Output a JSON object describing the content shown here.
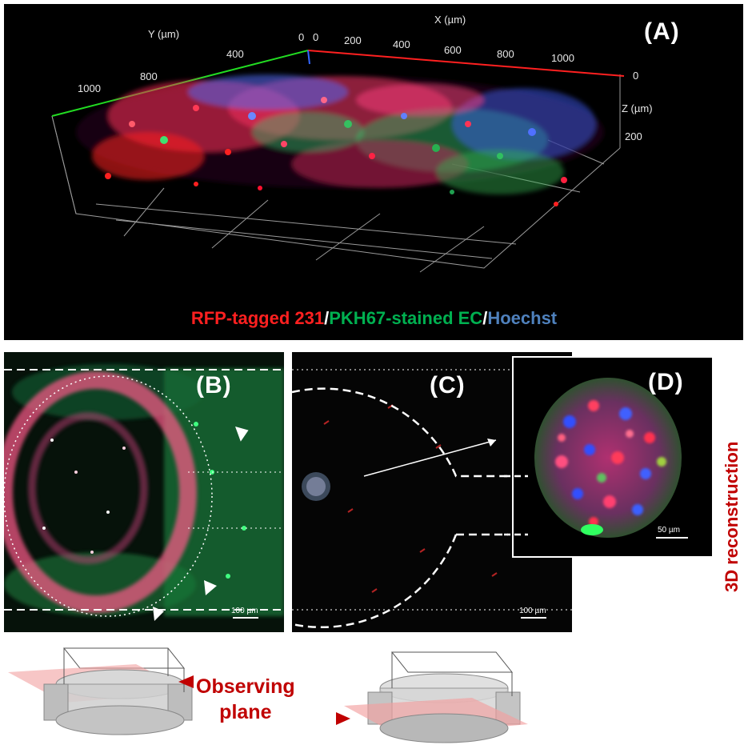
{
  "panelA": {
    "label": "(A)",
    "x_axis_title": "X (µm)",
    "y_axis_title": "Y (µm)",
    "z_axis_title": "Z (µm)",
    "x_ticks": [
      "0",
      "200",
      "400",
      "600",
      "800",
      "1000"
    ],
    "y_ticks": [
      "0",
      "400",
      "800",
      "1000"
    ],
    "z_ticks": [
      "0",
      "200"
    ],
    "legend": {
      "part1": "RFP-tagged 231",
      "sep1": "/",
      "part2": "PKH67-stained EC",
      "sep2": "/",
      "part3": "Hoechst",
      "colors": {
        "part1": "#ff2020",
        "part2": "#00b050",
        "part3": "#4f81bd"
      }
    }
  },
  "panelB": {
    "label": "(B)",
    "scale_bar": "100 µm"
  },
  "panelC": {
    "label": "(C)",
    "scale_bar": "100 µm"
  },
  "panelD": {
    "label": "(D)",
    "scale_bar": "50 µm"
  },
  "side_label": "3D reconstruction",
  "observing_plane": {
    "line1": "Observing",
    "line2": "plane"
  },
  "colors": {
    "accent_red": "#c00000",
    "plane_pink": "#f2a0a0"
  }
}
